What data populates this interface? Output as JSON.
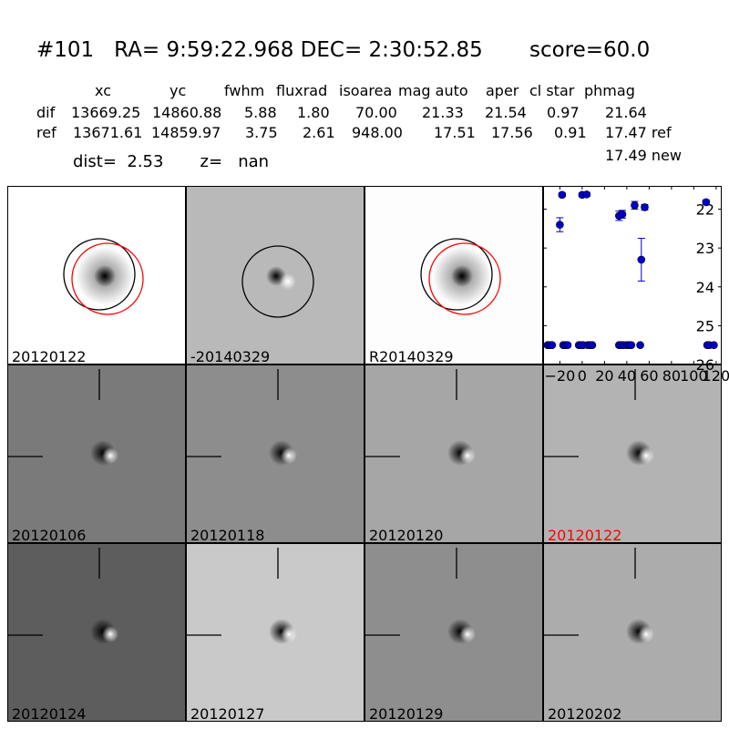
{
  "title": "#101   RA= 9:59:22.968 DEC= 2:30:52.85       score=60.0",
  "table": {
    "headers": [
      "xc",
      "yc",
      "fwhm",
      "fluxrad",
      "isoarea",
      "mag auto",
      "aper",
      "cl star",
      "phmag"
    ],
    "rows": [
      {
        "label": "dif",
        "values": [
          "13669.25",
          "14860.88",
          "5.88",
          "1.80",
          "70.00",
          "21.33",
          "21.54",
          "0.97",
          "21.64"
        ]
      },
      {
        "label": "ref",
        "values": [
          "13671.61",
          "14859.97",
          "3.75",
          "2.61",
          "948.00",
          "17.51",
          "17.56",
          "0.91",
          "17.47 ref"
        ]
      }
    ],
    "extra": "17.49 new"
  },
  "dist_line": "dist=  2.53       z=   nan",
  "panels": [
    {
      "label": "20120122",
      "bg": "#ffffff",
      "type": "ref"
    },
    {
      "label": "-20140329",
      "bg": "#b9b9b9",
      "type": "dif"
    },
    {
      "label": "R20140329",
      "bg": "#fdfdfd",
      "type": "ref"
    },
    {
      "label": "20120106",
      "bg": "#7a7a7a",
      "type": "stamp"
    },
    {
      "label": "20120118",
      "bg": "#8d8d8d",
      "type": "stamp"
    },
    {
      "label": "20120120",
      "bg": "#a6a6a6",
      "type": "stamp"
    },
    {
      "label": "20120122",
      "bg": "#b3b3b3",
      "type": "stamp",
      "label_color": "#ff0000"
    },
    {
      "label": "20120124",
      "bg": "#5d5d5d",
      "type": "stamp"
    },
    {
      "label": "20120127",
      "bg": "#c9c9c9",
      "type": "stamp"
    },
    {
      "label": "20120129",
      "bg": "#8e8e8e",
      "type": "stamp"
    },
    {
      "label": "20120202",
      "bg": "#acacac",
      "type": "stamp"
    }
  ],
  "chart_data": {
    "type": "scatter",
    "xlim": [
      -35,
      125
    ],
    "ylim": [
      26,
      21.4
    ],
    "xticks": [
      -20,
      0,
      20,
      40,
      60,
      80,
      100,
      120
    ],
    "xtick_labels": [
      "−20",
      "0",
      "20",
      "40",
      "60",
      "80",
      "100",
      "120"
    ],
    "yticks": [
      22,
      23,
      24,
      25,
      26
    ],
    "color": "#0000cc",
    "points": [
      {
        "x": -31,
        "y": 25.5
      },
      {
        "x": -29,
        "y": 25.5
      },
      {
        "x": -27,
        "y": 25.5
      },
      {
        "x": -17,
        "y": 25.5
      },
      {
        "x": -15,
        "y": 25.5
      },
      {
        "x": -13,
        "y": 25.5
      },
      {
        "x": -3,
        "y": 25.5
      },
      {
        "x": -1,
        "y": 25.5
      },
      {
        "x": 1,
        "y": 25.5
      },
      {
        "x": 5,
        "y": 25.5
      },
      {
        "x": 7,
        "y": 25.5
      },
      {
        "x": 9,
        "y": 25.5
      },
      {
        "x": 33,
        "y": 25.5
      },
      {
        "x": 35,
        "y": 25.5
      },
      {
        "x": 37,
        "y": 25.5
      },
      {
        "x": 40,
        "y": 25.5
      },
      {
        "x": 42,
        "y": 25.5
      },
      {
        "x": 44,
        "y": 25.5
      },
      {
        "x": 52,
        "y": 25.5
      },
      {
        "x": 112,
        "y": 25.5
      },
      {
        "x": 114,
        "y": 25.5
      },
      {
        "x": 118,
        "y": 25.5
      },
      {
        "x": -20,
        "y": 22.4,
        "err": 0.18
      },
      {
        "x": -18,
        "y": 21.63,
        "err": 0.05
      },
      {
        "x": 0,
        "y": 21.63,
        "err": 0.05
      },
      {
        "x": 4,
        "y": 21.62,
        "err": 0.05
      },
      {
        "x": 33,
        "y": 22.17,
        "err": 0.12
      },
      {
        "x": 36,
        "y": 22.13,
        "err": 0.1
      },
      {
        "x": 47,
        "y": 21.9,
        "err": 0.1
      },
      {
        "x": 53,
        "y": 23.3,
        "err": 0.55
      },
      {
        "x": 56,
        "y": 21.95,
        "err": 0.07
      },
      {
        "x": 111,
        "y": 21.82,
        "err": 0.06
      }
    ]
  }
}
